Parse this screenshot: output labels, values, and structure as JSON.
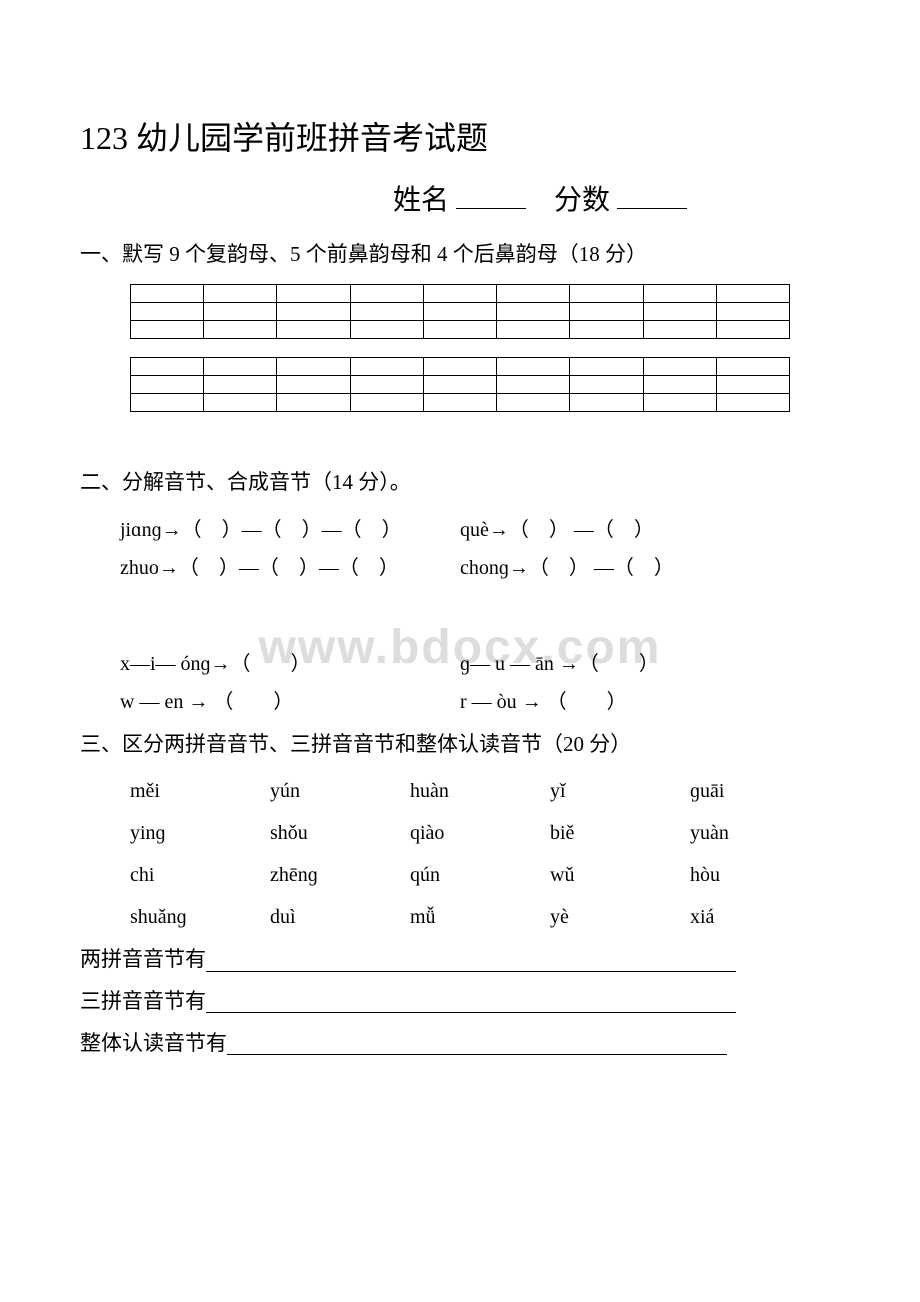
{
  "title": "123 幼儿园学前班拼音考试题",
  "name_label": "姓名",
  "score_label": "分数",
  "section1": "一、默写 9 个复韵母、5 个前鼻韵母和 4 个后鼻韵母（18 分）",
  "grid1": {
    "rows": 3,
    "cols": 9
  },
  "grid2": {
    "rows": 3,
    "cols": 9
  },
  "section2": "二、分解音节、合成音节（14 分）。",
  "q2_lines_a": [
    {
      "left": "jiɑnɡ→（　）—（　）—（　）",
      "right": "què→（　） —（　）"
    },
    {
      "left": "zhuo→（　）—（　）—（　）",
      "right": "chonɡ→（　） —（　）"
    }
  ],
  "q2_lines_b": [
    {
      "left": "x—i— ónɡ→（　　）",
      "right": "ɡ— u — ān →（　　）"
    },
    {
      "left": "w — en → （　　）",
      "right": "r — òu → （　　）"
    }
  ],
  "section3": "三、区分两拼音音节、三拼音音节和整体认读音节（20 分）",
  "syllables": [
    [
      "měi",
      "yún",
      "huàn",
      "yǐ",
      "ɡuāi"
    ],
    [
      "yinɡ",
      "shǒu",
      "qiào",
      "biě",
      "yuàn"
    ],
    [
      "chi",
      "zhēnɡ",
      "qún",
      "wǔ",
      "hòu"
    ],
    [
      "shuǎnɡ",
      "duì",
      "mǚ",
      "yè",
      "xiá"
    ]
  ],
  "answer_labels": {
    "two": "两拼音音节有",
    "three": "三拼音音节有",
    "whole": "整体认读音节有"
  },
  "watermark": "www.bdocx.com"
}
